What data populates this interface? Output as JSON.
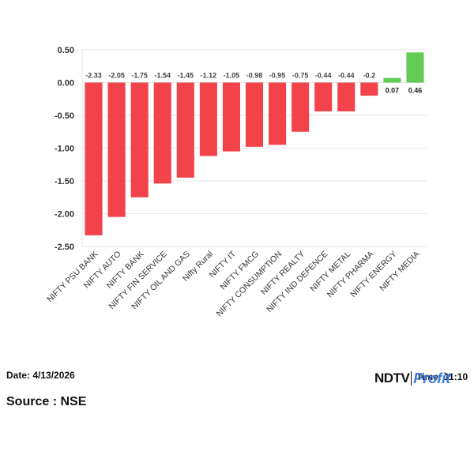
{
  "chart_data": {
    "type": "bar",
    "categories": [
      "NIFTY PSU BANK",
      "NIFTY AUTO",
      "NIFTY BANK",
      "NIFTY FIN SERVICE",
      "NIFTY OIL AND GAS",
      "Nifty Rural",
      "NIFTY IT",
      "NIFTY FMCG",
      "NIFTY CONSUMPTION",
      "NIFTY REALTY",
      "NIFTY IND DEFENCE",
      "NIFTY METAL",
      "NIFTY PHARMA",
      "NIFTY ENERGY",
      "NIFTY MEDIA"
    ],
    "values": [
      -2.33,
      -2.05,
      -1.75,
      -1.54,
      -1.45,
      -1.12,
      -1.05,
      -0.98,
      -0.95,
      -0.75,
      -0.44,
      -0.44,
      -0.2,
      0.07,
      0.46
    ],
    "data_labels": [
      "-2.33",
      "-2.05",
      "-1.75",
      "-1.54",
      "-1.45",
      "-1.12",
      "-1.05",
      "-0.98",
      "-0.95",
      "-0.75",
      "-0.44",
      "-0.44",
      "-0.2",
      "0.07",
      "0.46"
    ],
    "yticks": [
      0.5,
      0.0,
      -0.5,
      -1.0,
      -1.5,
      -2.0,
      -2.5
    ],
    "ytick_labels": [
      "0.50",
      "0.00",
      "-0.50",
      "-1.00",
      "-1.50",
      "-2.00",
      "-2.50"
    ],
    "ylim": [
      -2.5,
      0.5
    ],
    "grid": true,
    "colors": {
      "negative": "#f2434b",
      "positive": "#62cc55",
      "grid": "#e4e4e4"
    },
    "title": "",
    "xlabel": "",
    "ylabel": ""
  },
  "footer": {
    "date_text": "Date: 4/13/2026",
    "source_text": "Source : NSE",
    "time_text": "Time: 11:10"
  },
  "branding": {
    "ndtv_text": "NDTV",
    "profit_text": "Profit"
  }
}
